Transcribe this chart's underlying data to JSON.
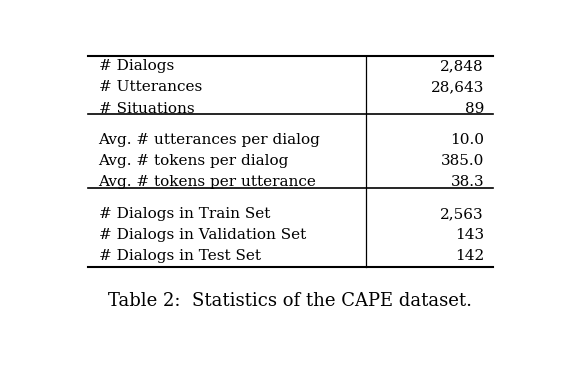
{
  "sections": [
    {
      "rows": [
        [
          "# Dialogs",
          "2,848"
        ],
        [
          "# Utterances",
          "28,643"
        ],
        [
          "# Situations",
          "89"
        ]
      ]
    },
    {
      "rows": [
        [
          "Avg. # utterances per dialog",
          "10.0"
        ],
        [
          "Avg. # tokens per dialog",
          "385.0"
        ],
        [
          "Avg. # tokens per utterance",
          "38.3"
        ]
      ]
    },
    {
      "rows": [
        [
          "# Dialogs in Train Set",
          "2,563"
        ],
        [
          "# Dialogs in Validation Set",
          "143"
        ],
        [
          "# Dialogs in Test Set",
          "142"
        ]
      ]
    }
  ],
  "caption": "Table 2:  Statistics of the CAPE dataset.",
  "col_split": 0.68,
  "bg_color": "#ffffff",
  "text_color": "#000000",
  "font_size": 11,
  "caption_font_size": 13
}
